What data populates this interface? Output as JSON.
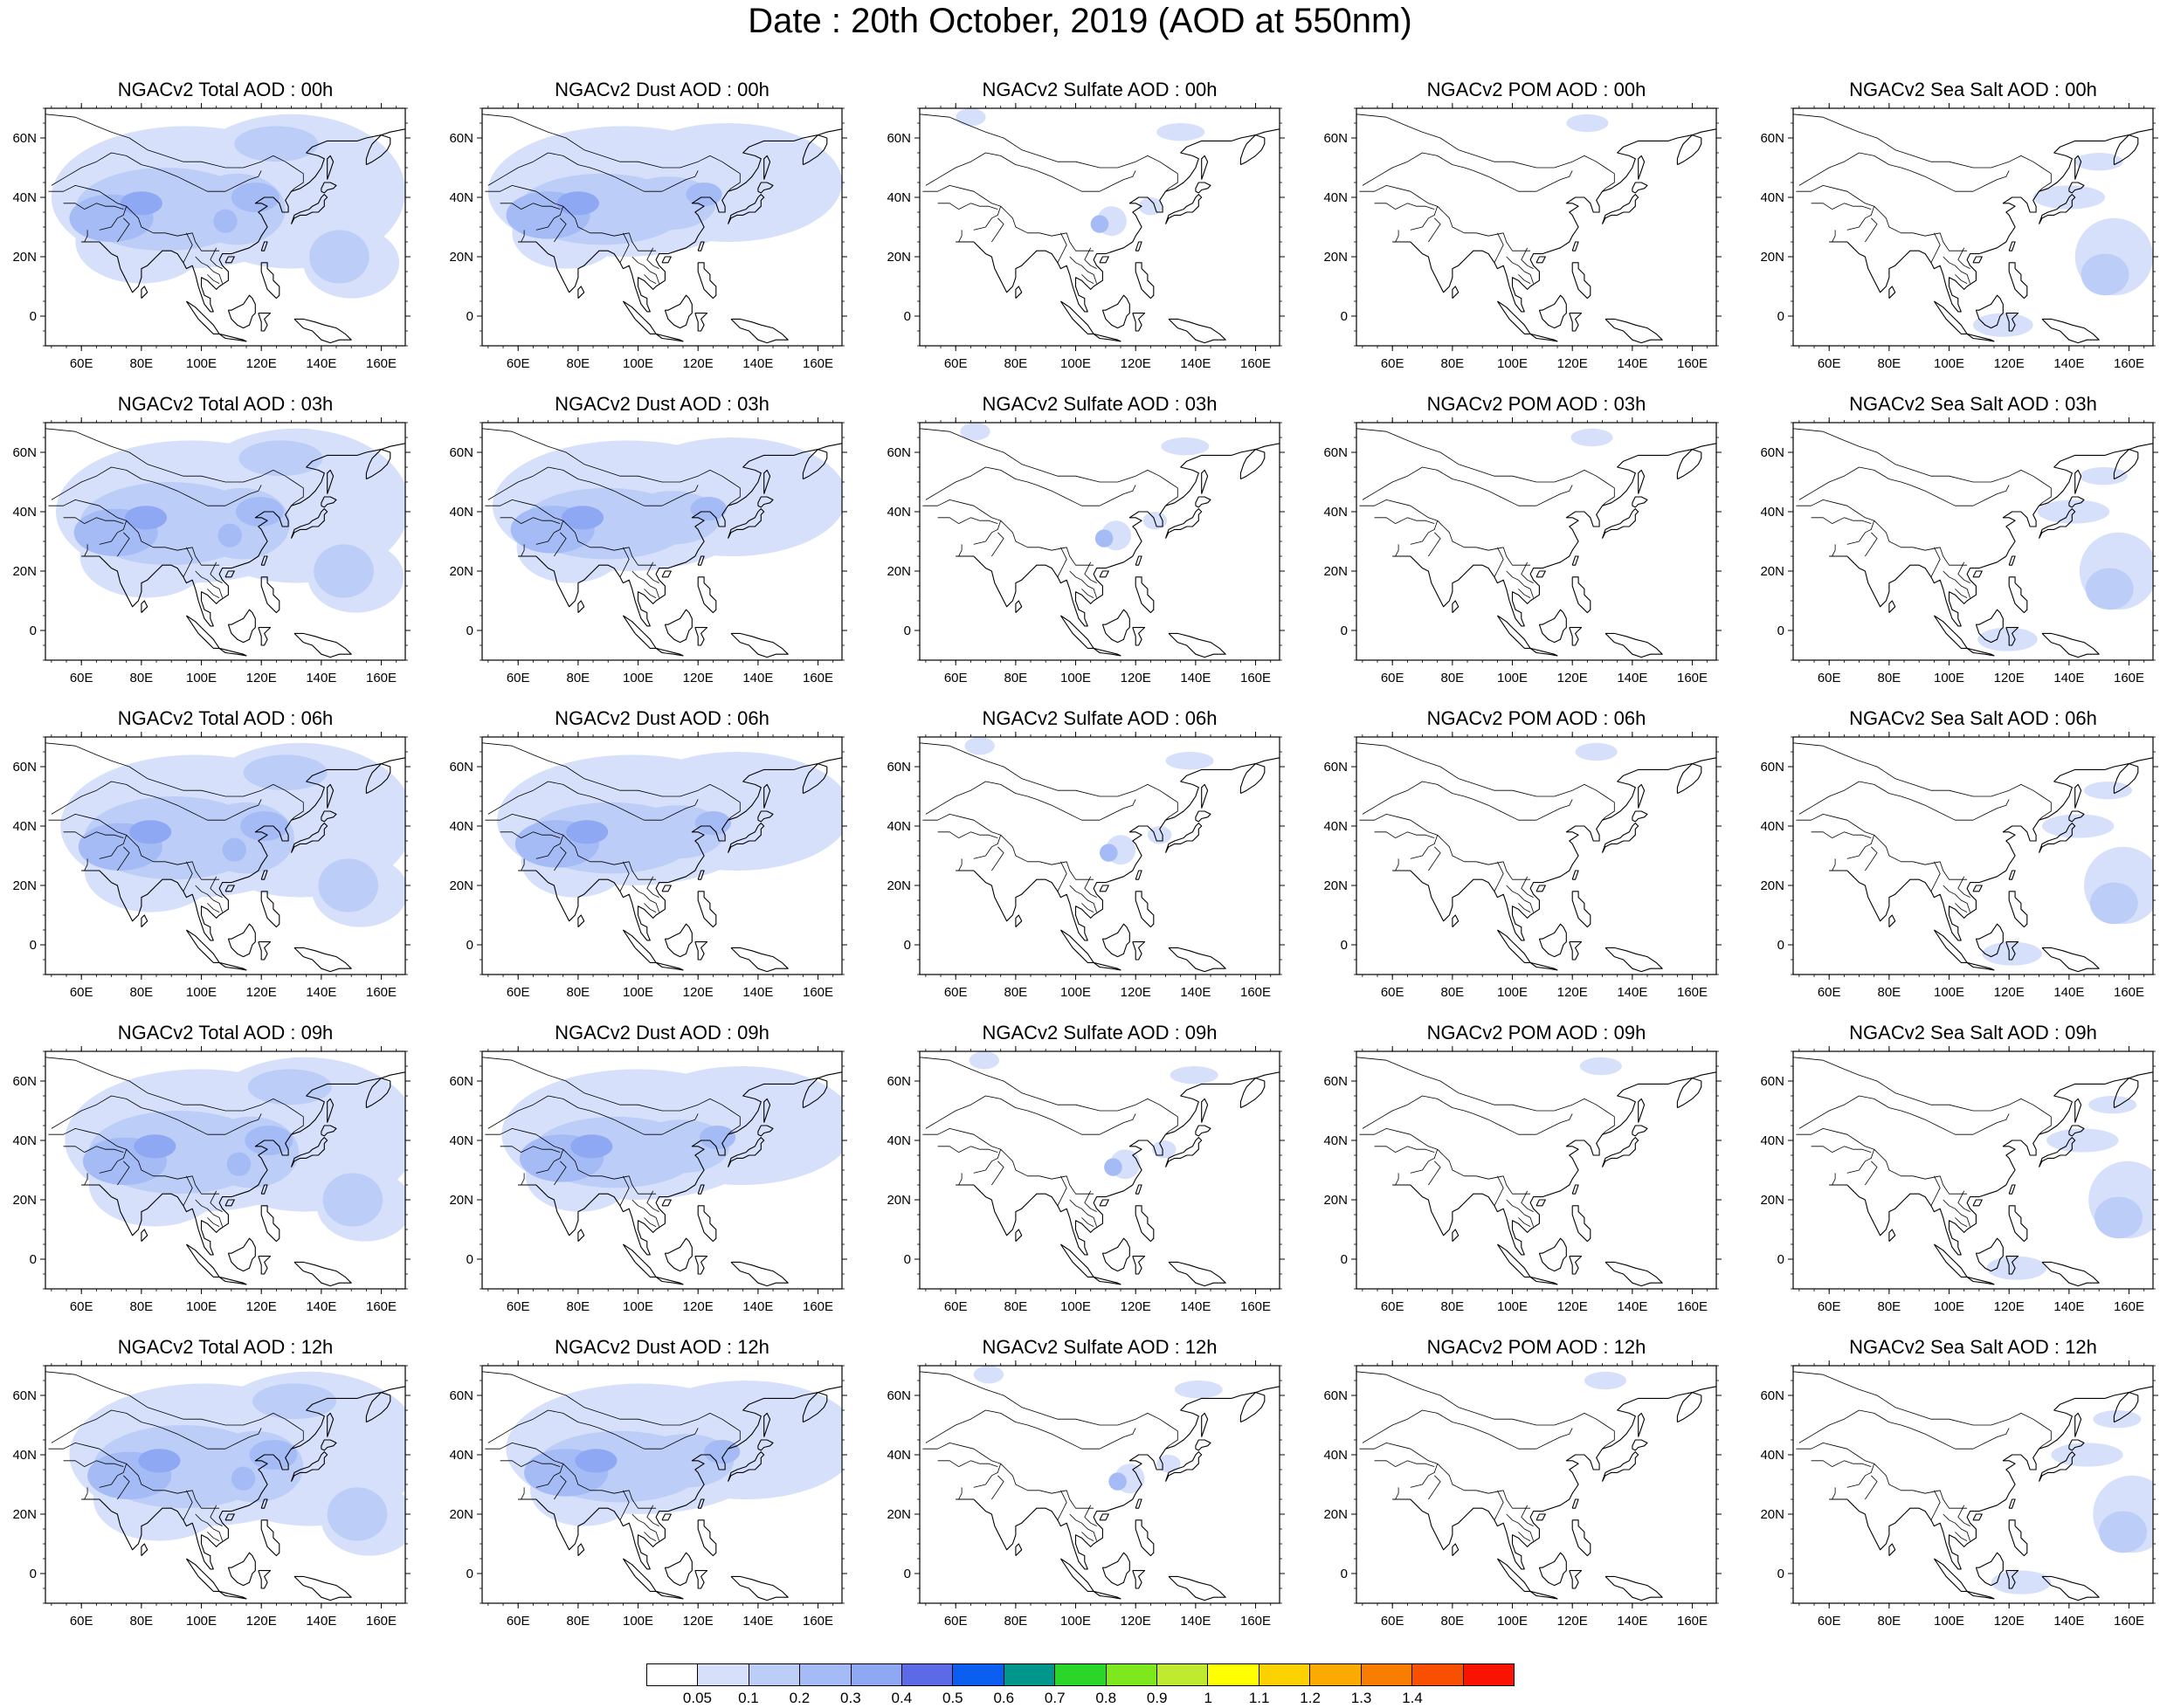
{
  "title": "Date : 20th October, 2019 (AOD at 550nm)",
  "map": {
    "lon_range": [
      48,
      168
    ],
    "lat_range": [
      -10,
      70
    ],
    "lon_ticks": [
      "60E",
      "80E",
      "100E",
      "120E",
      "140E",
      "160E"
    ],
    "lat_ticks": [
      "60N",
      "40N",
      "20N",
      "0"
    ],
    "land_outline_color": "#000000",
    "background": "#ffffff"
  },
  "columns": [
    "Total",
    "Dust",
    "Sulfate",
    "POM",
    "Sea Salt"
  ],
  "rows": [
    "00h",
    "03h",
    "06h",
    "09h",
    "12h"
  ],
  "panels": [
    [
      {
        "title": "NGACv2 Total AOD : 00h",
        "variable": "Total",
        "hour": "00h"
      },
      {
        "title": "NGACv2 Dust AOD : 00h",
        "variable": "Dust",
        "hour": "00h"
      },
      {
        "title": "NGACv2 Sulfate AOD : 00h",
        "variable": "Sulfate",
        "hour": "00h"
      },
      {
        "title": "NGACv2 POM AOD : 00h",
        "variable": "POM",
        "hour": "00h"
      },
      {
        "title": "NGACv2 Sea Salt AOD : 00h",
        "variable": "Sea Salt",
        "hour": "00h"
      }
    ],
    [
      {
        "title": "NGACv2 Total AOD : 03h",
        "variable": "Total",
        "hour": "03h"
      },
      {
        "title": "NGACv2 Dust AOD : 03h",
        "variable": "Dust",
        "hour": "03h"
      },
      {
        "title": "NGACv2 Sulfate AOD : 03h",
        "variable": "Sulfate",
        "hour": "03h"
      },
      {
        "title": "NGACv2 POM AOD : 03h",
        "variable": "POM",
        "hour": "03h"
      },
      {
        "title": "NGACv2 Sea Salt AOD : 03h",
        "variable": "Sea Salt",
        "hour": "03h"
      }
    ],
    [
      {
        "title": "NGACv2 Total AOD : 06h",
        "variable": "Total",
        "hour": "06h"
      },
      {
        "title": "NGACv2 Dust AOD : 06h",
        "variable": "Dust",
        "hour": "06h"
      },
      {
        "title": "NGACv2 Sulfate AOD : 06h",
        "variable": "Sulfate",
        "hour": "06h"
      },
      {
        "title": "NGACv2 POM AOD : 06h",
        "variable": "POM",
        "hour": "06h"
      },
      {
        "title": "NGACv2 Sea Salt AOD : 06h",
        "variable": "Sea Salt",
        "hour": "06h"
      }
    ],
    [
      {
        "title": "NGACv2 Total AOD : 09h",
        "variable": "Total",
        "hour": "09h"
      },
      {
        "title": "NGACv2 Dust AOD : 09h",
        "variable": "Dust",
        "hour": "09h"
      },
      {
        "title": "NGACv2 Sulfate AOD : 09h",
        "variable": "Sulfate",
        "hour": "09h"
      },
      {
        "title": "NGACv2 POM AOD : 09h",
        "variable": "POM",
        "hour": "09h"
      },
      {
        "title": "NGACv2 Sea Salt  AOD : 09h",
        "variable": "Sea Salt",
        "hour": "09h"
      }
    ],
    [
      {
        "title": "NGACv2 Total AOD  : 12h",
        "variable": "Total",
        "hour": "12h"
      },
      {
        "title": "NGACv2 Dust AOD : 12h",
        "variable": "Dust",
        "hour": "12h"
      },
      {
        "title": "NGACv2 Sulfate AOD : 12h",
        "variable": "Sulfate",
        "hour": "12h"
      },
      {
        "title": "NGACv2 POM  AOD : 12h",
        "variable": "POM",
        "hour": "12h"
      },
      {
        "title": "NGACv2 Sea Salt  AOD : 12h",
        "variable": "Sea Salt",
        "hour": "12h"
      }
    ]
  ],
  "colorbar": {
    "colors": [
      "#ffffff",
      "#d6e0fb",
      "#bccdf8",
      "#a5bbf5",
      "#8ea8f3",
      "#5c6ae8",
      "#0a5ef0",
      "#00968c",
      "#2ad62a",
      "#7ee81e",
      "#c0ea30",
      "#ffff00",
      "#fbd200",
      "#faaa00",
      "#f87d00",
      "#f85000",
      "#f81400"
    ],
    "labels": [
      "0.05",
      "0.1",
      "0.2",
      "0.3",
      "0.4",
      "0.5",
      "0.6",
      "0.7",
      "0.8",
      "0.9",
      "1",
      "1.1",
      "1.2",
      "1.3",
      "1.4"
    ]
  },
  "fill_colors": {
    "weak": "#d6e0fb",
    "light": "#bccdf8",
    "medium": "#a5bbf5",
    "strong": "#8ea8f3",
    "hot": "#5c6ae8"
  }
}
